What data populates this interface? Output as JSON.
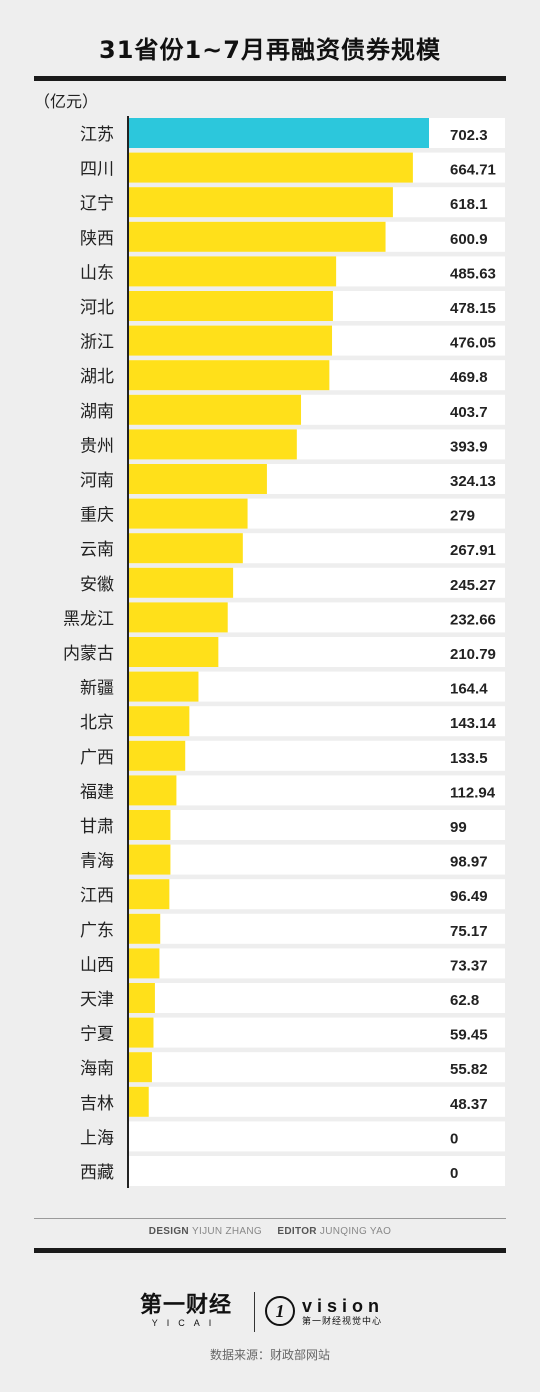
{
  "title": "31省份1~7月再融资债券规模",
  "unit": "（亿元）",
  "colors": {
    "highlight": "#2cc7dc",
    "bar": "#ffe01a",
    "row_bg": "#ffffff",
    "page_bg": "#eeeeee"
  },
  "chart_data": {
    "type": "bar",
    "orientation": "horizontal",
    "title": "31省份1~7月再融资债券规模",
    "xlabel": "",
    "ylabel": "",
    "unit": "（亿元）",
    "xlim": [
      0,
      702.3
    ],
    "highlight_index": 0,
    "categories": [
      "江苏",
      "四川",
      "辽宁",
      "陕西",
      "山东",
      "河北",
      "浙江",
      "湖北",
      "湖南",
      "贵州",
      "河南",
      "重庆",
      "云南",
      "安徽",
      "黑龙江",
      "内蒙古",
      "新疆",
      "北京",
      "广西",
      "福建",
      "甘肃",
      "青海",
      "江西",
      "广东",
      "山西",
      "天津",
      "宁夏",
      "海南",
      "吉林",
      "上海",
      "西藏"
    ],
    "values": [
      702.3,
      664.71,
      618.1,
      600.9,
      485.63,
      478.15,
      476.05,
      469.8,
      403.7,
      393.9,
      324.13,
      279,
      267.91,
      245.27,
      232.66,
      210.79,
      164.4,
      143.14,
      133.5,
      112.94,
      99,
      98.97,
      96.49,
      75.17,
      73.37,
      62.8,
      59.45,
      55.82,
      48.37,
      0,
      0
    ],
    "value_labels": [
      "702.3",
      "664.71",
      "618.1",
      "600.9",
      "485.63",
      "478.15",
      "476.05",
      "469.8",
      "403.7",
      "393.9",
      "324.13",
      "279",
      "267.91",
      "245.27",
      "232.66",
      "210.79",
      "164.4",
      "143.14",
      "133.5",
      "112.94",
      "99",
      "98.97",
      "96.49",
      "75.17",
      "73.37",
      "62.8",
      "59.45",
      "55.82",
      "48.37",
      "0",
      "0"
    ],
    "grid": false,
    "legend": "none"
  },
  "footer": {
    "design_label": "DESIGN",
    "design_name": "YIJUN ZHANG",
    "editor_label": "EDITOR",
    "editor_name": "JUNQING YAO",
    "logo_cn": "第一财经",
    "logo_en": "YICAI",
    "vision_en": "vision",
    "vision_cn": "第一财经视觉中心",
    "source": "数据来源：财政部网站"
  }
}
